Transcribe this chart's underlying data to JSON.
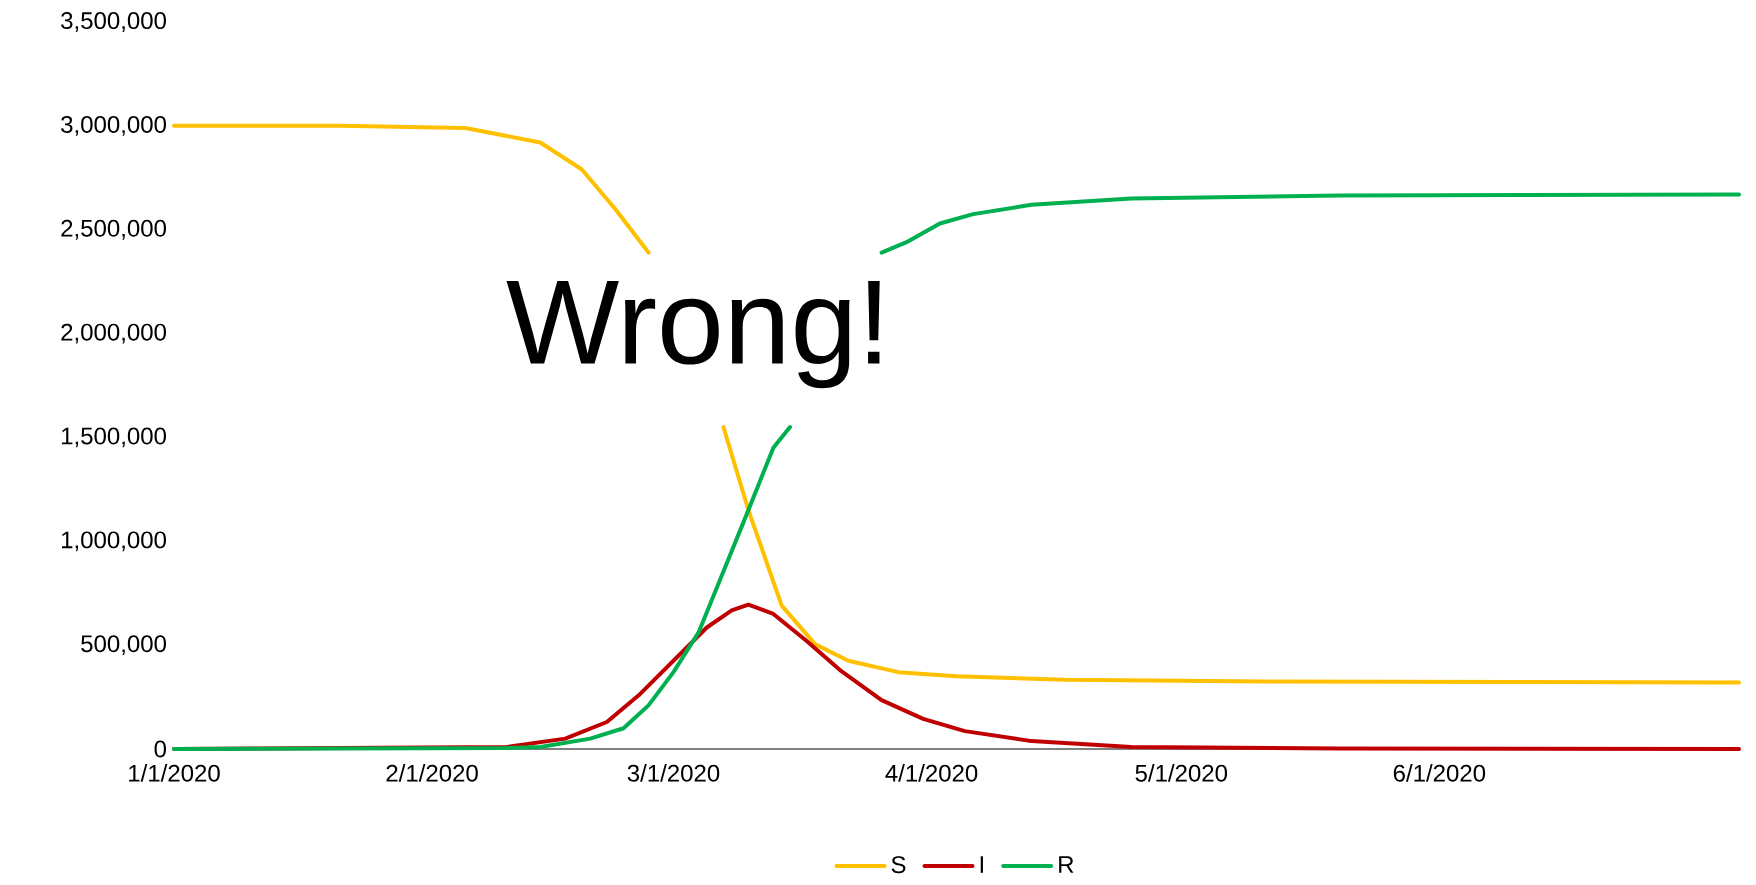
{
  "chart_data": {
    "type": "line",
    "annotations": [
      "Wrong!"
    ],
    "xlim": [
      "2020-01-01",
      "2020-07-07"
    ],
    "ylim": [
      0,
      3500000
    ],
    "xticks": [
      {
        "value": "2020-01-01",
        "label": "1/1/2020"
      },
      {
        "value": "2020-02-01",
        "label": "2/1/2020"
      },
      {
        "value": "2020-03-01",
        "label": "3/1/2020"
      },
      {
        "value": "2020-04-01",
        "label": "4/1/2020"
      },
      {
        "value": "2020-05-01",
        "label": "5/1/2020"
      },
      {
        "value": "2020-06-01",
        "label": "6/1/2020"
      }
    ],
    "yticks": [
      {
        "value": 0,
        "label": "0"
      },
      {
        "value": 500000,
        "label": "500,000"
      },
      {
        "value": 1000000,
        "label": "1,000,000"
      },
      {
        "value": 1500000,
        "label": "1,500,000"
      },
      {
        "value": 2000000,
        "label": "2,000,000"
      },
      {
        "value": 2500000,
        "label": "2,500,000"
      },
      {
        "value": 3000000,
        "label": "3,000,000"
      },
      {
        "value": 3500000,
        "label": "3,500,000"
      }
    ],
    "grid": false,
    "legend": "bottom",
    "series": [
      {
        "name": "S",
        "color": "#ffc000",
        "x": [
          "2020-01-01",
          "2020-01-21",
          "2020-02-05",
          "2020-02-14",
          "2020-02-19",
          "2020-02-23",
          "2020-02-27",
          "2020-03-01",
          "2020-03-07",
          "2020-03-10",
          "2020-03-14",
          "2020-03-18",
          "2020-03-22",
          "2020-03-28",
          "2020-04-04",
          "2020-04-17",
          "2020-05-11",
          "2020-07-07"
        ],
        "values": [
          3000000,
          3000000,
          2990000,
          2920000,
          2790000,
          2600000,
          2390000,
          null,
          1550000,
          1150000,
          690000,
          505000,
          425000,
          370000,
          350000,
          333000,
          325000,
          320000
        ]
      },
      {
        "name": "I",
        "color": "#c00000",
        "x": [
          "2020-01-01",
          "2020-02-10",
          "2020-02-17",
          "2020-02-22",
          "2020-02-26",
          "2020-03-01",
          "2020-03-05",
          "2020-03-08",
          "2020-03-10",
          "2020-03-13",
          "2020-03-17",
          "2020-03-21",
          "2020-03-26",
          "2020-03-31",
          "2020-04-05",
          "2020-04-13",
          "2020-04-25",
          "2020-05-20",
          "2020-07-07"
        ],
        "values": [
          0,
          10000,
          50000,
          130000,
          265000,
          425000,
          585000,
          667000,
          695000,
          650000,
          520000,
          380000,
          235000,
          145000,
          86000,
          38000,
          10000,
          2000,
          0
        ]
      },
      {
        "name": "R",
        "color": "#00b050",
        "x": [
          "2020-01-01",
          "2020-02-10",
          "2020-02-14",
          "2020-02-20",
          "2020-02-24",
          "2020-02-27",
          "2020-03-01",
          "2020-03-04",
          "2020-03-07",
          "2020-03-10",
          "2020-03-13",
          "2020-03-15",
          "2020-03-20",
          "2020-03-26",
          "2020-03-29",
          "2020-04-02",
          "2020-04-06",
          "2020-04-13",
          "2020-04-25",
          "2020-05-20",
          "2020-07-07"
        ],
        "values": [
          0,
          5000,
          10000,
          50000,
          100000,
          210000,
          370000,
          560000,
          855000,
          1150000,
          1450000,
          1550000,
          null,
          2390000,
          2440000,
          2530000,
          2575000,
          2620000,
          2650000,
          2665000,
          2670000
        ]
      }
    ]
  }
}
